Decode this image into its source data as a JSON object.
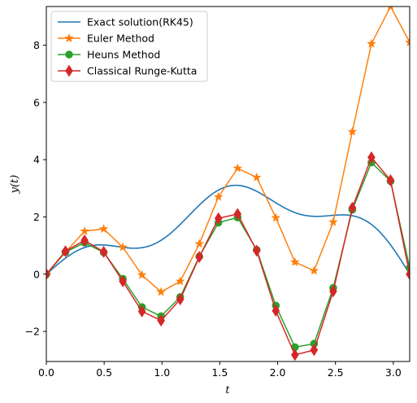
{
  "chart_data": {
    "type": "line",
    "title": "",
    "xlabel": "t",
    "ylabel": "y(t)",
    "xlim": [
      0,
      3.1416
    ],
    "ylim": [
      -3.05,
      9.35
    ],
    "xticks": [
      {
        "value": 0.0,
        "label": "0.0"
      },
      {
        "value": 0.5,
        "label": "0.5"
      },
      {
        "value": 1.0,
        "label": "1.0"
      },
      {
        "value": 1.5,
        "label": "1.5"
      },
      {
        "value": 2.0,
        "label": "2.0"
      },
      {
        "value": 2.5,
        "label": "2.5"
      },
      {
        "value": 3.0,
        "label": "3.0"
      }
    ],
    "yticks": [
      {
        "value": -2,
        "label": "−2"
      },
      {
        "value": 0,
        "label": "0"
      },
      {
        "value": 2,
        "label": "2"
      },
      {
        "value": 4,
        "label": "4"
      },
      {
        "value": 6,
        "label": "6"
      },
      {
        "value": 8,
        "label": "8"
      }
    ],
    "grid": false,
    "legend_position": "top-left",
    "step_x": [
      0.0,
      0.1653,
      0.3307,
      0.496,
      0.6614,
      0.8267,
      0.9921,
      1.1574,
      1.3228,
      1.4881,
      1.6535,
      1.8188,
      1.9842,
      2.1495,
      2.3149,
      2.4802,
      2.6456,
      2.8109,
      2.9762,
      3.1416
    ],
    "series": [
      {
        "name": "Exact solution(RK45)",
        "color": "#1f77b4",
        "marker": "none",
        "curve": "y = sin(t)·(1 + t) + sin(5t)/2",
        "x": [],
        "values": []
      },
      {
        "name": "Euler Method",
        "color": "#ff7f0e",
        "marker": "star",
        "values": [
          0.0,
          0.77,
          1.5,
          1.58,
          0.94,
          -0.03,
          -0.62,
          -0.25,
          1.06,
          2.7,
          3.7,
          3.38,
          1.97,
          0.42,
          0.12,
          1.82,
          4.98,
          8.05,
          9.35,
          8.1
        ]
      },
      {
        "name": "Heuns Method",
        "color": "#2ca02c",
        "marker": "circle",
        "values": [
          0.0,
          0.77,
          1.1,
          0.76,
          -0.16,
          -1.15,
          -1.47,
          -0.8,
          0.62,
          1.8,
          1.98,
          0.85,
          -1.1,
          -2.55,
          -2.43,
          -0.48,
          2.25,
          3.9,
          3.25,
          0.22
        ]
      },
      {
        "name": "Classical Runge-Kutta",
        "color": "#d62728",
        "marker": "diamond",
        "values": [
          0.0,
          0.8,
          1.18,
          0.78,
          -0.25,
          -1.3,
          -1.62,
          -0.88,
          0.6,
          1.95,
          2.1,
          0.82,
          -1.28,
          -2.82,
          -2.65,
          -0.6,
          2.32,
          4.08,
          3.28,
          0.0
        ]
      }
    ]
  }
}
